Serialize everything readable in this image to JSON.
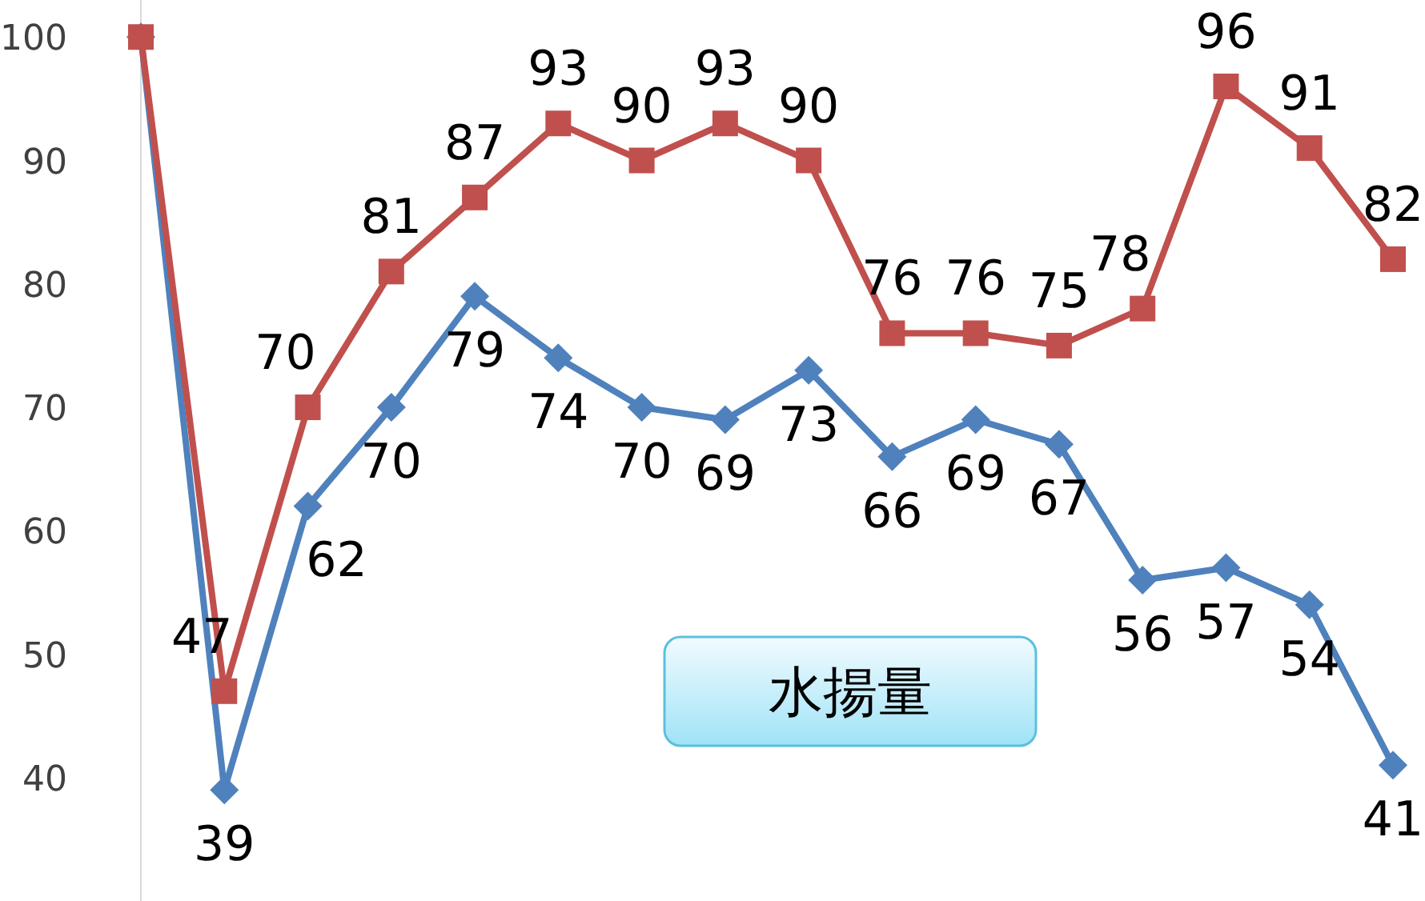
{
  "chart_data": {
    "type": "line",
    "categories": [
      null,
      null,
      null,
      null,
      null,
      null,
      null,
      null,
      null,
      null,
      null,
      null,
      null,
      null,
      null,
      null
    ],
    "ylim": [
      30,
      103
    ],
    "yticks": [
      40,
      50,
      60,
      70,
      80,
      90,
      100
    ],
    "legend": false,
    "line_style": "solid",
    "series": [
      {
        "color": "#c0504d",
        "marker": "square",
        "values": [
          100,
          47,
          70,
          81,
          87,
          93,
          90,
          93,
          90,
          76,
          76,
          75,
          78,
          96,
          91,
          82
        ],
        "value_labels": [
          null,
          "47",
          "70",
          "81",
          "87",
          "93",
          "90",
          "93",
          "90",
          "76",
          "76",
          "75",
          "78",
          "96",
          "91",
          "82"
        ]
      },
      {
        "name": "水揚量",
        "color": "#4f81bd",
        "marker": "diamond",
        "values": [
          100,
          39,
          62,
          70,
          79,
          74,
          70,
          69,
          73,
          66,
          69,
          67,
          56,
          57,
          54,
          41
        ],
        "value_labels": [
          null,
          "39",
          "62",
          "70",
          "79",
          "74",
          "70",
          "69",
          "73",
          "66",
          "69",
          "67",
          "56",
          "57",
          "54",
          "41"
        ]
      }
    ]
  }
}
